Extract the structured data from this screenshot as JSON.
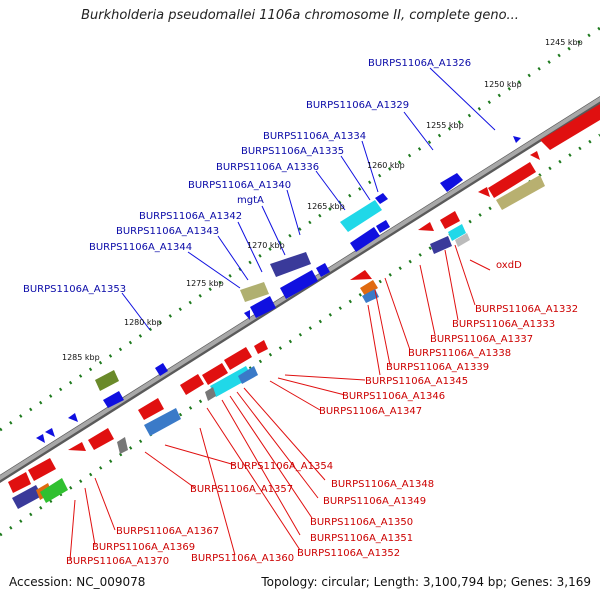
{
  "title": "Burkholderia pseudomallei 1106a chromosome II, complete geno...",
  "footer": {
    "accession": "Accession: NC_009078",
    "summary": "Topology: circular; Length: 3,100,794 bp; Genes: 3,169"
  },
  "kbp_ticks": [
    "1245 kbp",
    "1250 kbp",
    "1255 kbp",
    "1260 kbp",
    "1265 kbp",
    "1270 kbp",
    "1275 kbp",
    "1280 kbp",
    "1285 kbp"
  ],
  "forward_labels": [
    "BURPS1106A_A1326",
    "BURPS1106A_A1329",
    "BURPS1106A_A1334",
    "BURPS1106A_A1335",
    "BURPS1106A_A1336",
    "BURPS1106A_A1340",
    "mgtA",
    "BURPS1106A_A1342",
    "BURPS1106A_A1343",
    "BURPS1106A_A1344",
    "BURPS1106A_A1353"
  ],
  "reverse_labels": [
    "oxdD",
    "BURPS1106A_A1332",
    "BURPS1106A_A1333",
    "BURPS1106A_A1337",
    "BURPS1106A_A1338",
    "BURPS1106A_A1339",
    "BURPS1106A_A1345",
    "BURPS1106A_A1346",
    "BURPS1106A_A1347",
    "BURPS1106A_A1354",
    "BURPS1106A_A1348",
    "BURPS1106A_A1357",
    "BURPS1106A_A1349",
    "BURPS1106A_A1350",
    "BURPS1106A_A1367",
    "BURPS1106A_A1351",
    "BURPS1106A_A1369",
    "BURPS1106A_A1352",
    "BURPS1106A_A1370",
    "BURPS1106A_A1360"
  ],
  "colors": {
    "forward_gene": "#1010e0",
    "reverse_gene": "#e01010",
    "backbone": "#8a8a8a",
    "tick_dots": "#1e7a1e",
    "forward_label": "#0a0aa8",
    "reverse_label": "#cc0000"
  }
}
